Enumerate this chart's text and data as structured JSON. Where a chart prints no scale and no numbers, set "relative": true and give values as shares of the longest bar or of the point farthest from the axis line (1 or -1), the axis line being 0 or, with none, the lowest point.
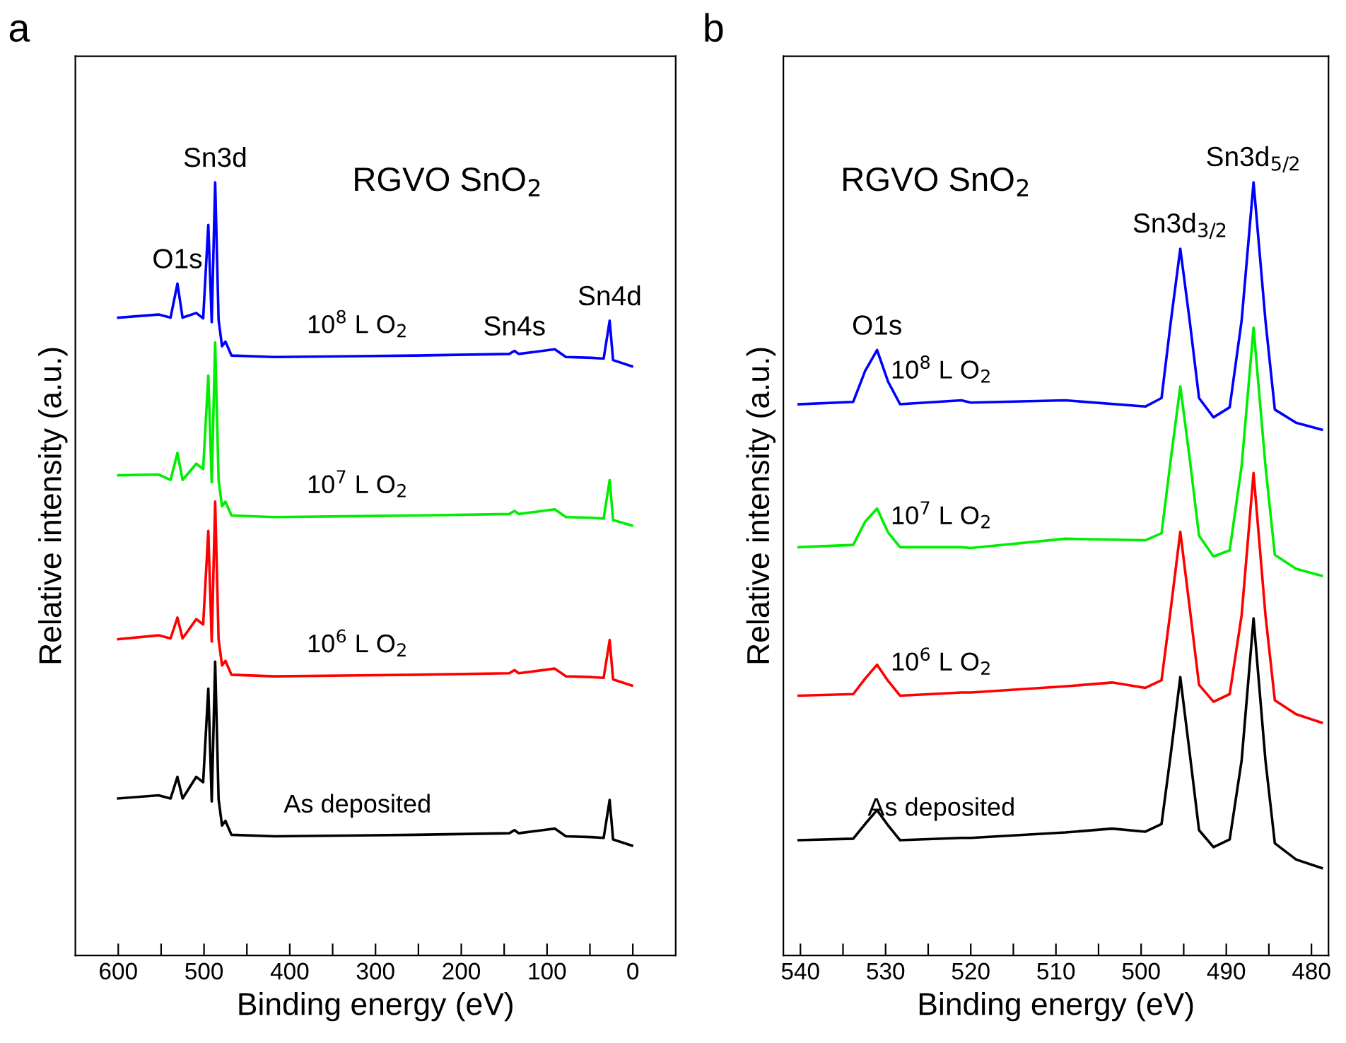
{
  "chart_data": [
    {
      "type": "line",
      "title": "a",
      "xlabel": "Binding energy (eV)",
      "ylabel": "Relative intensity (a.u.)",
      "relative": true,
      "grid": false,
      "legend": false,
      "marker": "none",
      "line_style": "solid",
      "xlim": [
        650,
        -50
      ],
      "xticks": [
        600,
        {
          "value": 550,
          "label": null
        },
        500,
        {
          "value": 450,
          "label": null
        },
        400,
        {
          "value": 350,
          "label": null
        },
        300,
        {
          "value": 250,
          "label": null
        },
        200,
        {
          "value": 150,
          "label": null
        },
        100,
        {
          "value": 50,
          "label": null
        },
        0
      ],
      "annotations": [
        "RGVO SnO$_{2}$",
        {
          "text": "Sn3d",
          "x": 487,
          "y": 1.0
        },
        {
          "text": "O1s",
          "x": 531,
          "y": 0.869
        },
        {
          "text": "Sn4s",
          "x": 138,
          "y": 0.782
        },
        {
          "text": "Sn4d",
          "x": 27,
          "y": 0.821
        }
      ],
      "series": [
        {
          "name": "10$^{8}$ L O$_{2}$",
          "color": "#0000ff",
          "x": [
            600,
            553,
            539,
            531,
            525,
            509,
            501,
            495,
            491,
            487,
            483,
            479,
            475,
            468,
            418,
            253,
            144,
            138,
            133,
            91,
            78,
            48,
            34,
            27,
            23,
            1
          ],
          "values": [
            0.825,
            0.829,
            0.825,
            0.869,
            0.825,
            0.831,
            0.824,
            0.945,
            0.819,
            1.0,
            0.822,
            0.788,
            0.794,
            0.776,
            0.774,
            0.776,
            0.778,
            0.782,
            0.778,
            0.784,
            0.774,
            0.773,
            0.772,
            0.821,
            0.77,
            0.762
          ]
        },
        {
          "name": "10$^{7}$ L O$_{2}$",
          "color": "#00ee00",
          "x": [
            600,
            553,
            539,
            531,
            525,
            509,
            501,
            495,
            491,
            487,
            483,
            479,
            475,
            468,
            418,
            253,
            144,
            138,
            133,
            91,
            78,
            48,
            34,
            27,
            23,
            1
          ],
          "values": [
            0.621,
            0.622,
            0.615,
            0.65,
            0.615,
            0.636,
            0.629,
            0.75,
            0.612,
            0.793,
            0.615,
            0.581,
            0.587,
            0.569,
            0.567,
            0.569,
            0.571,
            0.575,
            0.571,
            0.577,
            0.567,
            0.566,
            0.565,
            0.615,
            0.563,
            0.556
          ]
        },
        {
          "name": "10$^{6}$ L O$_{2}$",
          "color": "#ff0000",
          "x": [
            600,
            553,
            539,
            531,
            525,
            509,
            501,
            495,
            491,
            487,
            483,
            479,
            475,
            468,
            418,
            253,
            144,
            138,
            133,
            91,
            78,
            48,
            34,
            27,
            23,
            1
          ],
          "values": [
            0.409,
            0.414,
            0.41,
            0.437,
            0.41,
            0.435,
            0.428,
            0.549,
            0.406,
            0.587,
            0.409,
            0.375,
            0.381,
            0.363,
            0.361,
            0.363,
            0.365,
            0.369,
            0.365,
            0.371,
            0.361,
            0.36,
            0.359,
            0.408,
            0.357,
            0.349
          ]
        },
        {
          "name": "As deposited",
          "color": "#000000",
          "x": [
            600,
            553,
            539,
            531,
            525,
            509,
            501,
            495,
            491,
            487,
            483,
            479,
            475,
            468,
            418,
            253,
            144,
            138,
            133,
            91,
            78,
            48,
            34,
            27,
            23,
            1
          ],
          "values": [
            0.203,
            0.207,
            0.203,
            0.231,
            0.203,
            0.231,
            0.224,
            0.345,
            0.199,
            0.38,
            0.202,
            0.168,
            0.174,
            0.156,
            0.154,
            0.156,
            0.158,
            0.162,
            0.158,
            0.164,
            0.154,
            0.153,
            0.152,
            0.201,
            0.15,
            0.142
          ]
        }
      ]
    },
    {
      "type": "line",
      "title": "b",
      "xlabel": "Binding energy (eV)",
      "ylabel": "Relative intensity (a.u.)",
      "relative": true,
      "grid": false,
      "legend": false,
      "marker": "none",
      "line_style": "solid",
      "xlim": [
        542,
        478
      ],
      "xticks": [
        540,
        {
          "value": 535,
          "label": null
        },
        530,
        {
          "value": 525,
          "label": null
        },
        520,
        {
          "value": 515,
          "label": null
        },
        510,
        {
          "value": 505,
          "label": null
        },
        500,
        {
          "value": 495,
          "label": null
        },
        490,
        {
          "value": 485,
          "label": null
        },
        480
      ],
      "annotations": [
        "RGVO SnO$_{2}$",
        {
          "text": "O1s",
          "x": 531.0,
          "y": 0.783
        },
        {
          "text": "Sn3d$_{3/2}$",
          "x": 495.4,
          "y": 0.914
        },
        {
          "text": "Sn3d$_{5/2}$",
          "x": 486.8,
          "y": 1.0
        }
      ],
      "series": [
        {
          "name": "10$^{8}$ L O$_{2}$",
          "color": "#0000ff",
          "x": [
            540.2,
            533.8,
            532.4,
            531.0,
            529.7,
            528.3,
            521.1,
            520.0,
            508.9,
            499.5,
            497.6,
            496.5,
            495.4,
            494.3,
            493.2,
            491.5,
            489.6,
            488.2,
            486.8,
            485.4,
            484.3,
            481.8,
            478.8
          ],
          "values": [
            0.713,
            0.716,
            0.756,
            0.783,
            0.742,
            0.713,
            0.718,
            0.715,
            0.718,
            0.71,
            0.721,
            0.821,
            0.914,
            0.821,
            0.721,
            0.696,
            0.709,
            0.821,
            1.0,
            0.821,
            0.706,
            0.689,
            0.68
          ]
        },
        {
          "name": "10$^{7}$ L O$_{2}$",
          "color": "#00ee00",
          "x": [
            540.2,
            533.8,
            532.4,
            531.0,
            529.7,
            528.3,
            521.1,
            520.0,
            508.9,
            499.5,
            497.6,
            496.5,
            495.4,
            494.3,
            493.2,
            491.5,
            489.6,
            488.2,
            486.8,
            485.4,
            484.3,
            481.8,
            478.8
          ],
          "values": [
            0.528,
            0.531,
            0.561,
            0.578,
            0.547,
            0.528,
            0.528,
            0.527,
            0.539,
            0.537,
            0.546,
            0.643,
            0.736,
            0.643,
            0.543,
            0.516,
            0.524,
            0.633,
            0.812,
            0.633,
            0.518,
            0.5,
            0.491
          ]
        },
        {
          "name": "10$^{6}$ L O$_{2}$",
          "color": "#ff0000",
          "x": [
            540.2,
            533.8,
            532.4,
            531.0,
            529.7,
            528.3,
            521.1,
            520.0,
            508.9,
            503.4,
            499.5,
            497.6,
            496.5,
            495.4,
            494.3,
            493.2,
            491.5,
            489.6,
            488.2,
            486.8,
            485.4,
            484.3,
            481.8,
            478.8
          ],
          "values": [
            0.336,
            0.338,
            0.358,
            0.376,
            0.355,
            0.336,
            0.34,
            0.34,
            0.348,
            0.353,
            0.346,
            0.356,
            0.45,
            0.548,
            0.45,
            0.35,
            0.328,
            0.338,
            0.44,
            0.624,
            0.44,
            0.33,
            0.312,
            0.301
          ]
        },
        {
          "name": "As deposited",
          "color": "#000000",
          "x": [
            540.2,
            533.8,
            532.4,
            531.0,
            529.7,
            528.3,
            521.1,
            520.0,
            508.9,
            503.4,
            499.5,
            497.6,
            496.5,
            495.4,
            494.3,
            493.2,
            491.5,
            489.6,
            488.2,
            486.8,
            485.4,
            484.3,
            481.8,
            478.8
          ],
          "values": [
            0.149,
            0.151,
            0.17,
            0.188,
            0.168,
            0.149,
            0.152,
            0.152,
            0.159,
            0.164,
            0.16,
            0.17,
            0.262,
            0.36,
            0.262,
            0.162,
            0.14,
            0.15,
            0.252,
            0.436,
            0.252,
            0.145,
            0.124,
            0.113
          ]
        }
      ]
    }
  ]
}
